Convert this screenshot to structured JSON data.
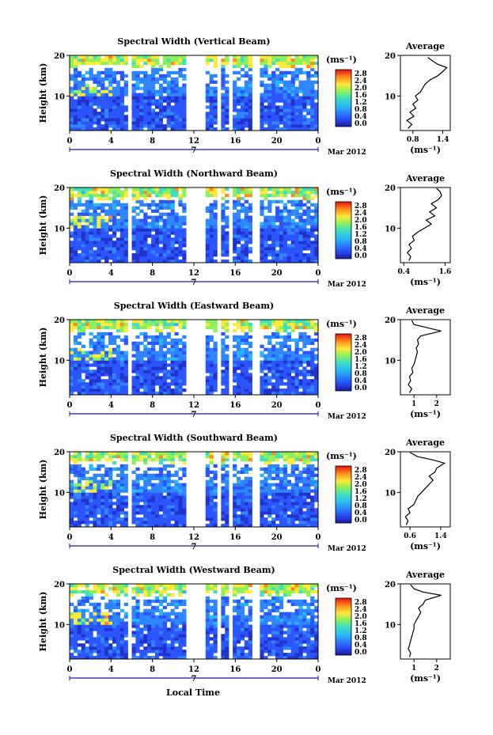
{
  "chart_data": [
    {
      "type": "heatmap",
      "title": "Spectral Width (Vertical Beam)",
      "ylabel": "Height (km)",
      "y_ticks": [
        "20",
        "10"
      ],
      "x_ticks": [
        "0",
        "4",
        "8",
        "12",
        "16",
        "20",
        "0"
      ],
      "date_marker": "7",
      "date_label": "Mar 2012",
      "xlim": [
        0,
        24
      ],
      "ylim": [
        1.5,
        20
      ],
      "data_gaps_hours": [
        [
          5.5,
          6.1
        ],
        [
          11.3,
          13.2
        ],
        [
          14.4,
          14.8
        ],
        [
          15.2,
          15.6
        ],
        [
          17.7,
          18.2
        ]
      ],
      "colorbar": {
        "unit": "(ms⁻¹)",
        "ticks": [
          "2.8",
          "2.4",
          "2.0",
          "1.6",
          "1.2",
          "0.8",
          "0.4",
          "0.0"
        ],
        "range": [
          0.0,
          2.8
        ]
      },
      "profile": {
        "title": "Average",
        "xlabel": "(ms⁻¹)",
        "x_ticks": [
          "0.8",
          "1.4"
        ],
        "x_tick_values": [
          0.8,
          1.4
        ],
        "y_ticks": [
          "20",
          "10"
        ],
        "xlim": [
          0.55,
          1.55
        ],
        "ylim": [
          1.5,
          20
        ],
        "points": [
          [
            0.7,
            2
          ],
          [
            0.78,
            3
          ],
          [
            0.68,
            4
          ],
          [
            0.82,
            5
          ],
          [
            0.74,
            6
          ],
          [
            0.86,
            7
          ],
          [
            0.8,
            8
          ],
          [
            0.9,
            9
          ],
          [
            0.85,
            10
          ],
          [
            0.95,
            11
          ],
          [
            1.0,
            12
          ],
          [
            1.05,
            13
          ],
          [
            1.15,
            14
          ],
          [
            1.3,
            15
          ],
          [
            1.4,
            16
          ],
          [
            1.48,
            17
          ],
          [
            1.3,
            17.8
          ],
          [
            1.2,
            18.6
          ],
          [
            1.1,
            19.5
          ]
        ]
      }
    },
    {
      "type": "heatmap",
      "title": "Spectral Width (Northward Beam)",
      "ylabel": "Height (km)",
      "y_ticks": [
        "20",
        "10"
      ],
      "x_ticks": [
        "0",
        "4",
        "8",
        "12",
        "16",
        "20",
        "0"
      ],
      "date_marker": "7",
      "date_label": "Mar 2012",
      "xlim": [
        0,
        24
      ],
      "ylim": [
        1.5,
        20
      ],
      "data_gaps_hours": [
        [
          5.5,
          6.1
        ],
        [
          11.3,
          13.2
        ],
        [
          14.4,
          14.8
        ],
        [
          15.2,
          15.6
        ],
        [
          17.7,
          18.2
        ]
      ],
      "colorbar": {
        "unit": "(ms⁻¹)",
        "ticks": [
          "2.8",
          "2.4",
          "2.0",
          "1.6",
          "1.2",
          "0.8",
          "0.4",
          "0.0"
        ],
        "range": [
          0.0,
          2.8
        ]
      },
      "profile": {
        "title": "Average",
        "xlabel": "(ms⁻¹)",
        "x_ticks": [
          "0.4",
          "1.6"
        ],
        "x_tick_values": [
          0.4,
          1.6
        ],
        "y_ticks": [
          "20",
          "10"
        ],
        "xlim": [
          0.3,
          1.75
        ],
        "ylim": [
          1.5,
          20
        ],
        "points": [
          [
            0.55,
            2
          ],
          [
            0.6,
            3
          ],
          [
            0.5,
            4
          ],
          [
            0.62,
            5
          ],
          [
            0.55,
            6
          ],
          [
            0.7,
            7
          ],
          [
            0.65,
            8
          ],
          [
            0.8,
            9
          ],
          [
            1.0,
            10
          ],
          [
            1.2,
            11
          ],
          [
            1.05,
            12
          ],
          [
            1.3,
            13
          ],
          [
            1.15,
            14
          ],
          [
            1.35,
            15
          ],
          [
            1.2,
            16
          ],
          [
            1.4,
            17
          ],
          [
            1.5,
            18
          ],
          [
            1.45,
            19
          ],
          [
            1.35,
            19.8
          ]
        ]
      }
    },
    {
      "type": "heatmap",
      "title": "Spectral Width (Eastward Beam)",
      "ylabel": "Height (km)",
      "y_ticks": [
        "20",
        "10"
      ],
      "x_ticks": [
        "0",
        "4",
        "8",
        "12",
        "16",
        "20",
        "0"
      ],
      "date_marker": "7",
      "date_label": "Mar 2012",
      "xlim": [
        0,
        24
      ],
      "ylim": [
        1.5,
        20
      ],
      "data_gaps_hours": [
        [
          5.5,
          6.1
        ],
        [
          11.3,
          13.2
        ],
        [
          14.4,
          14.8
        ],
        [
          15.2,
          15.6
        ],
        [
          17.7,
          18.2
        ]
      ],
      "colorbar": {
        "unit": "(ms⁻¹)",
        "ticks": [
          "2.8",
          "2.4",
          "2.0",
          "1.6",
          "1.2",
          "0.8",
          "0.4",
          "0.0"
        ],
        "range": [
          0.0,
          2.8
        ]
      },
      "profile": {
        "title": "Average",
        "xlabel": "(ms⁻¹)",
        "x_ticks": [
          "1",
          "2"
        ],
        "x_tick_values": [
          1,
          2
        ],
        "y_ticks": [
          "20",
          "10"
        ],
        "xlim": [
          0.4,
          2.6
        ],
        "ylim": [
          1.5,
          20
        ],
        "points": [
          [
            0.8,
            2
          ],
          [
            0.9,
            3
          ],
          [
            0.75,
            4
          ],
          [
            0.85,
            5
          ],
          [
            0.8,
            6
          ],
          [
            0.95,
            7
          ],
          [
            0.9,
            8
          ],
          [
            1.0,
            9
          ],
          [
            1.05,
            10
          ],
          [
            1.1,
            11
          ],
          [
            1.15,
            12
          ],
          [
            1.1,
            13
          ],
          [
            1.2,
            14
          ],
          [
            1.15,
            15
          ],
          [
            1.3,
            16
          ],
          [
            2.2,
            17.2
          ],
          [
            1.6,
            18
          ],
          [
            1.0,
            18.8
          ],
          [
            0.9,
            19.8
          ]
        ]
      }
    },
    {
      "type": "heatmap",
      "title": "Spectral Width (Southward Beam)",
      "ylabel": "Height (km)",
      "y_ticks": [
        "20",
        "10"
      ],
      "x_ticks": [
        "0",
        "4",
        "8",
        "12",
        "16",
        "20",
        "0"
      ],
      "date_marker": "7",
      "date_label": "Mar 2012",
      "xlim": [
        0,
        24
      ],
      "ylim": [
        1.5,
        20
      ],
      "data_gaps_hours": [
        [
          5.5,
          6.1
        ],
        [
          11.3,
          13.2
        ],
        [
          14.4,
          14.8
        ],
        [
          15.2,
          15.6
        ],
        [
          17.7,
          18.2
        ]
      ],
      "colorbar": {
        "unit": "(ms⁻¹)",
        "ticks": [
          "2.8",
          "2.4",
          "2.0",
          "1.6",
          "1.2",
          "0.8",
          "0.4",
          "0.0"
        ],
        "range": [
          0.0,
          2.8
        ]
      },
      "profile": {
        "title": "Average",
        "xlabel": "(ms⁻¹)",
        "x_ticks": [
          "0.6",
          "1.4"
        ],
        "x_tick_values": [
          0.6,
          1.4
        ],
        "y_ticks": [
          "20",
          "10"
        ],
        "xlim": [
          0.35,
          1.65
        ],
        "ylim": [
          1.5,
          20
        ],
        "points": [
          [
            0.5,
            2
          ],
          [
            0.55,
            3
          ],
          [
            0.48,
            4
          ],
          [
            0.6,
            5
          ],
          [
            0.55,
            6
          ],
          [
            0.7,
            7
          ],
          [
            0.75,
            8
          ],
          [
            0.8,
            9
          ],
          [
            0.9,
            10
          ],
          [
            1.0,
            11
          ],
          [
            1.1,
            12
          ],
          [
            1.2,
            13
          ],
          [
            1.1,
            14
          ],
          [
            1.25,
            15
          ],
          [
            1.3,
            16
          ],
          [
            1.5,
            17.2
          ],
          [
            1.2,
            18
          ],
          [
            0.8,
            18.8
          ],
          [
            0.6,
            19.8
          ]
        ]
      }
    },
    {
      "type": "heatmap",
      "title": "Spectral Width (Westward Beam)",
      "ylabel": "Height (km)",
      "y_ticks": [
        "20",
        "10"
      ],
      "x_ticks": [
        "0",
        "4",
        "8",
        "12",
        "16",
        "20",
        "0"
      ],
      "date_marker": "7",
      "date_label": "Mar 2012",
      "xlim": [
        0,
        24
      ],
      "ylim": [
        1.5,
        20
      ],
      "data_gaps_hours": [
        [
          5.5,
          6.1
        ],
        [
          11.3,
          13.2
        ],
        [
          14.4,
          14.8
        ],
        [
          15.2,
          15.6
        ],
        [
          17.7,
          18.2
        ]
      ],
      "colorbar": {
        "unit": "(ms⁻¹)",
        "ticks": [
          "2.8",
          "2.4",
          "2.0",
          "1.6",
          "1.2",
          "0.8",
          "0.4",
          "0.0"
        ],
        "range": [
          0.0,
          2.8
        ]
      },
      "profile": {
        "title": "Average",
        "xlabel": "(ms⁻¹)",
        "x_ticks": [
          "1",
          "2"
        ],
        "x_tick_values": [
          1,
          2
        ],
        "y_ticks": [
          "20",
          "10"
        ],
        "xlim": [
          0.4,
          2.6
        ],
        "ylim": [
          1.5,
          20
        ],
        "points": [
          [
            0.8,
            2
          ],
          [
            0.85,
            3
          ],
          [
            0.75,
            4
          ],
          [
            0.8,
            5
          ],
          [
            0.85,
            6
          ],
          [
            0.9,
            7
          ],
          [
            0.95,
            8
          ],
          [
            1.0,
            9
          ],
          [
            1.0,
            10
          ],
          [
            1.1,
            11
          ],
          [
            1.2,
            12
          ],
          [
            1.3,
            13
          ],
          [
            1.2,
            14
          ],
          [
            1.4,
            15
          ],
          [
            1.5,
            16
          ],
          [
            2.2,
            17.2
          ],
          [
            1.4,
            18
          ],
          [
            1.0,
            18.8
          ],
          [
            0.85,
            19.8
          ]
        ]
      }
    }
  ],
  "x_axis_label": "Local Time"
}
